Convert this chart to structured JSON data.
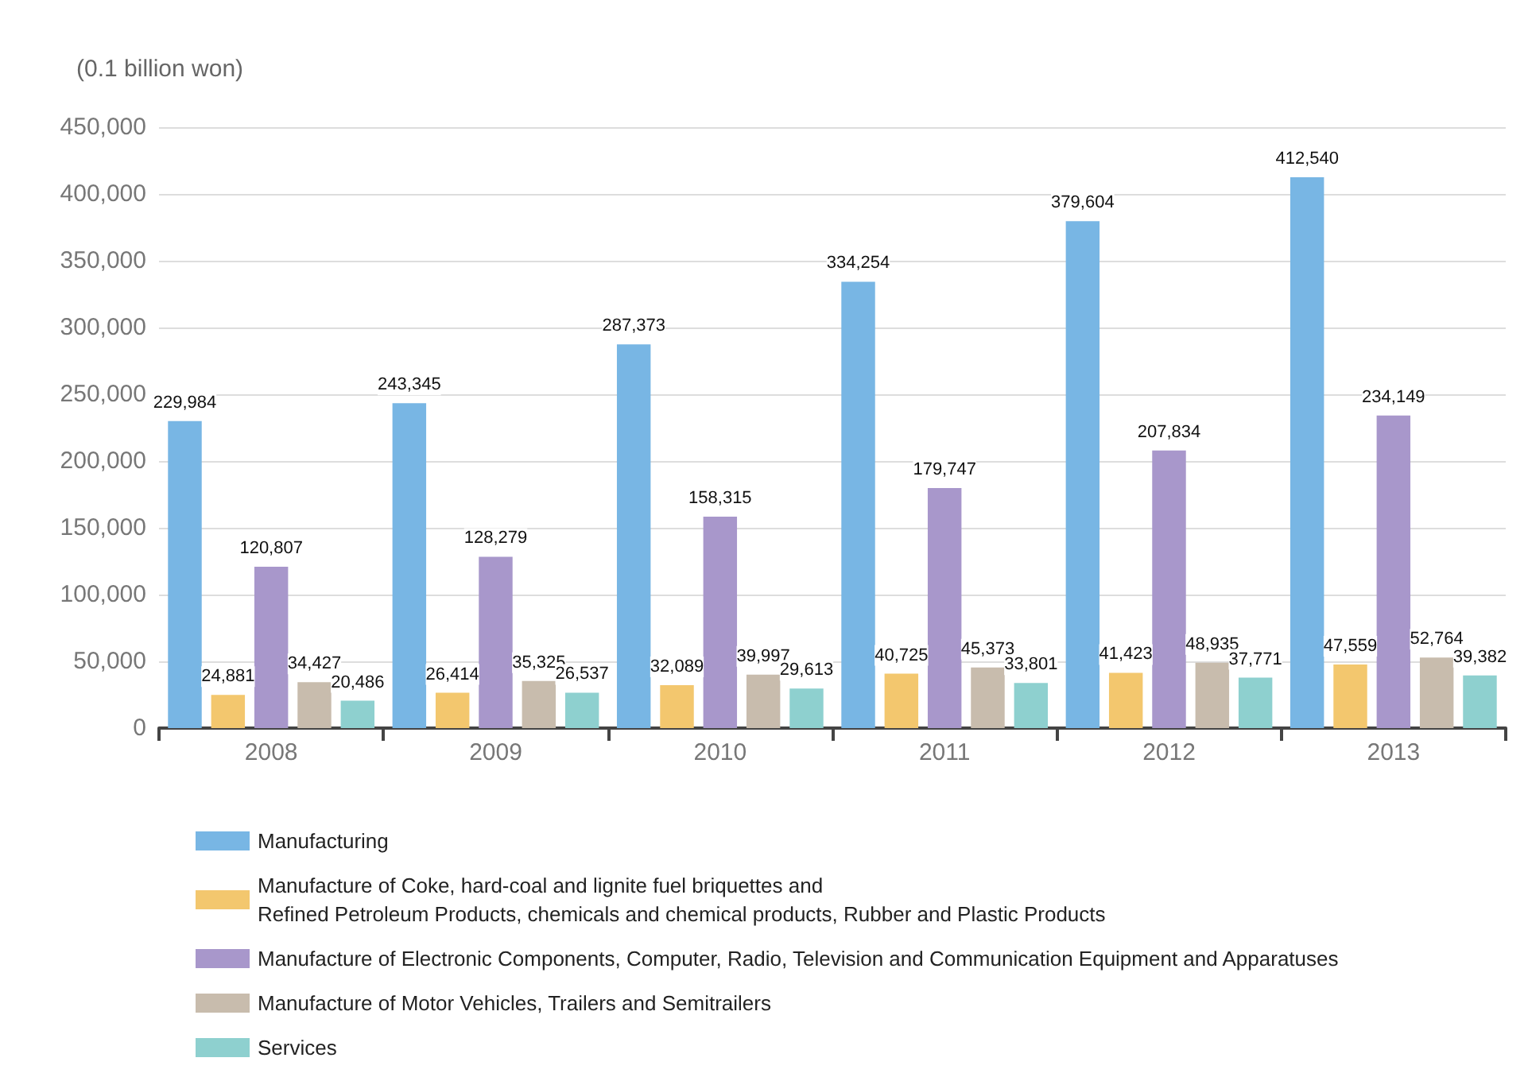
{
  "chart_data": {
    "type": "bar",
    "ylabel": "(0.1 billion won)",
    "categories": [
      "2008",
      "2009",
      "2010",
      "2011",
      "2012",
      "2013"
    ],
    "series": [
      {
        "name": "Manufacturing",
        "color": "#78b6e4",
        "values": [
          229984,
          243345,
          287373,
          334254,
          379604,
          412540
        ],
        "value_labels": [
          "229,984",
          "243,345",
          "287,373",
          "334,254",
          "379,604",
          "412,540"
        ]
      },
      {
        "name": "Manufacture of Coke, hard-coal and lignite fuel briquettes and\nRefined Petroleum Products, chemicals and chemical products, Rubber and Plastic Products",
        "color": "#f3c76e",
        "values": [
          24881,
          26414,
          32089,
          40725,
          41423,
          47559
        ],
        "value_labels": [
          "24,881",
          "26,414",
          "32,089",
          "40,725",
          "41,423",
          "47,559"
        ]
      },
      {
        "name": "Manufacture of Electronic Components, Computer, Radio, Television and Communication Equipment and Apparatuses",
        "color": "#a897cb",
        "values": [
          120807,
          128279,
          158315,
          179747,
          207834,
          234149
        ],
        "value_labels": [
          "120,807",
          "128,279",
          "158,315",
          "179,747",
          "207,834",
          "234,149"
        ]
      },
      {
        "name": "Manufacture of Motor Vehicles, Trailers and Semitrailers",
        "color": "#c8bcad",
        "values": [
          34427,
          35325,
          39997,
          45373,
          48935,
          52764
        ],
        "value_labels": [
          "34,427",
          "35,325",
          "39,997",
          "45,373",
          "48,935",
          "52,764"
        ]
      },
      {
        "name": "Services",
        "color": "#8ed0cf",
        "values": [
          20486,
          26537,
          29613,
          33801,
          37771,
          39382
        ],
        "value_labels": [
          "20,486",
          "26,537",
          "29,613",
          "33,801",
          "37,771",
          "39,382"
        ]
      }
    ],
    "ylim": [
      0,
      450000
    ],
    "yticks": [
      {
        "value": 0,
        "label": "0"
      },
      {
        "value": 50000,
        "label": "50,000"
      },
      {
        "value": 100000,
        "label": "100,000"
      },
      {
        "value": 150000,
        "label": "150,000"
      },
      {
        "value": 200000,
        "label": "200,000"
      },
      {
        "value": 250000,
        "label": "250,000"
      },
      {
        "value": 300000,
        "label": "300,000"
      },
      {
        "value": 350000,
        "label": "350,000"
      },
      {
        "value": 400000,
        "label": "400,000"
      },
      {
        "value": 450000,
        "label": "450,000"
      }
    ],
    "grid": "y",
    "legend": "bottom"
  }
}
